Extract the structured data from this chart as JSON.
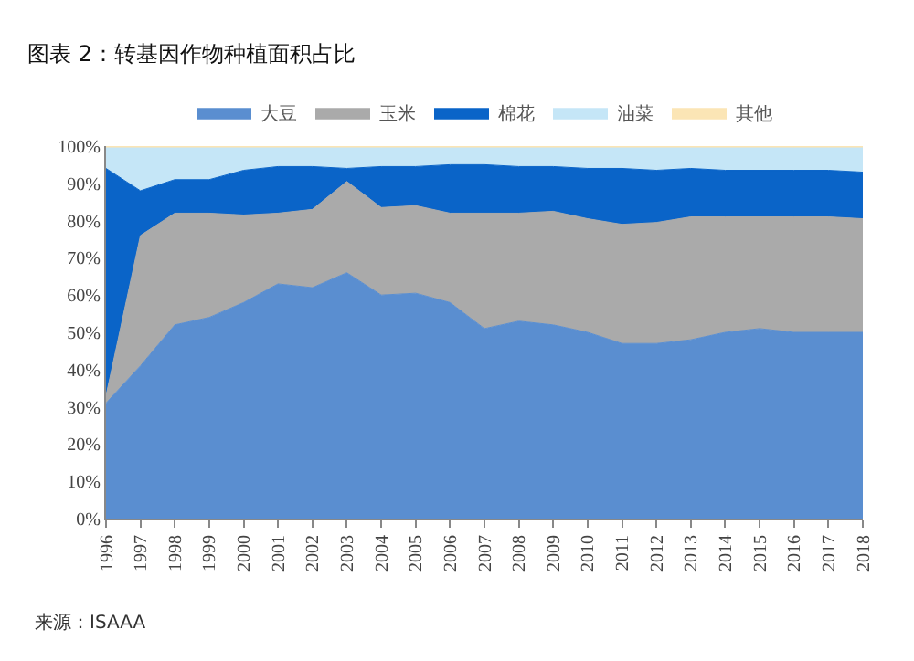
{
  "chart_data": {
    "type": "area",
    "stacked": true,
    "title": "图表 2：转基因作物种植面积占比",
    "annotations": [
      "来源：ISAAA"
    ],
    "categories": [
      "1996",
      "1997",
      "1998",
      "1999",
      "2000",
      "2001",
      "2002",
      "2003",
      "2004",
      "2005",
      "2006",
      "2007",
      "2008",
      "2009",
      "2010",
      "2011",
      "2012",
      "2013",
      "2014",
      "2015",
      "2016",
      "2017",
      "2018"
    ],
    "series": [
      {
        "name": "大豆",
        "color": "#5a8ed0",
        "values": [
          31,
          41,
          52,
          54,
          58,
          63,
          62,
          66,
          60,
          60.5,
          58,
          51,
          53,
          52,
          50,
          47,
          47,
          48,
          50,
          51,
          50,
          50,
          50
        ]
      },
      {
        "name": "玉米",
        "color": "#aaaaaa",
        "values": [
          2,
          35,
          30,
          28,
          23.5,
          19,
          21,
          24.5,
          23.5,
          23.5,
          24,
          31,
          29,
          30.5,
          30.5,
          32,
          32.5,
          33,
          31,
          30,
          31,
          31,
          30.5
        ]
      },
      {
        "name": "棉花",
        "color": "#0a64c8",
        "values": [
          61,
          12,
          9,
          9,
          12,
          12.5,
          11.5,
          3.5,
          11,
          10.5,
          13,
          13,
          12.5,
          12,
          13.5,
          15,
          14,
          13,
          12.5,
          12.5,
          12.5,
          12.5,
          12.5
        ]
      },
      {
        "name": "油菜",
        "color": "#c5e6f7",
        "values": [
          5.5,
          11.5,
          8.5,
          8.5,
          6,
          5,
          5,
          5.5,
          5,
          5,
          4.5,
          4.5,
          5,
          5,
          5.5,
          5.5,
          6,
          5.5,
          6,
          6,
          6,
          6,
          6.5
        ]
      },
      {
        "name": "其他",
        "color": "#fbe5b5",
        "values": [
          0.5,
          0.5,
          0.5,
          0.5,
          0.5,
          0.5,
          0.5,
          0.5,
          0.5,
          0.5,
          0.5,
          0.5,
          0.5,
          0.5,
          0.5,
          0.5,
          0.5,
          0.5,
          0.5,
          0.5,
          0.5,
          0.5,
          0.5
        ]
      }
    ],
    "ylim": [
      0,
      100
    ],
    "yticks": [
      {
        "value": 0,
        "label": "0%"
      },
      {
        "value": 10,
        "label": "10%"
      },
      {
        "value": 20,
        "label": "20%"
      },
      {
        "value": 30,
        "label": "30%"
      },
      {
        "value": 40,
        "label": "40%"
      },
      {
        "value": 50,
        "label": "50%"
      },
      {
        "value": 60,
        "label": "60%"
      },
      {
        "value": 70,
        "label": "70%"
      },
      {
        "value": 80,
        "label": "80%"
      },
      {
        "value": 90,
        "label": "90%"
      },
      {
        "value": 100,
        "label": "100%"
      }
    ],
    "legend": "top",
    "marker": "none"
  }
}
